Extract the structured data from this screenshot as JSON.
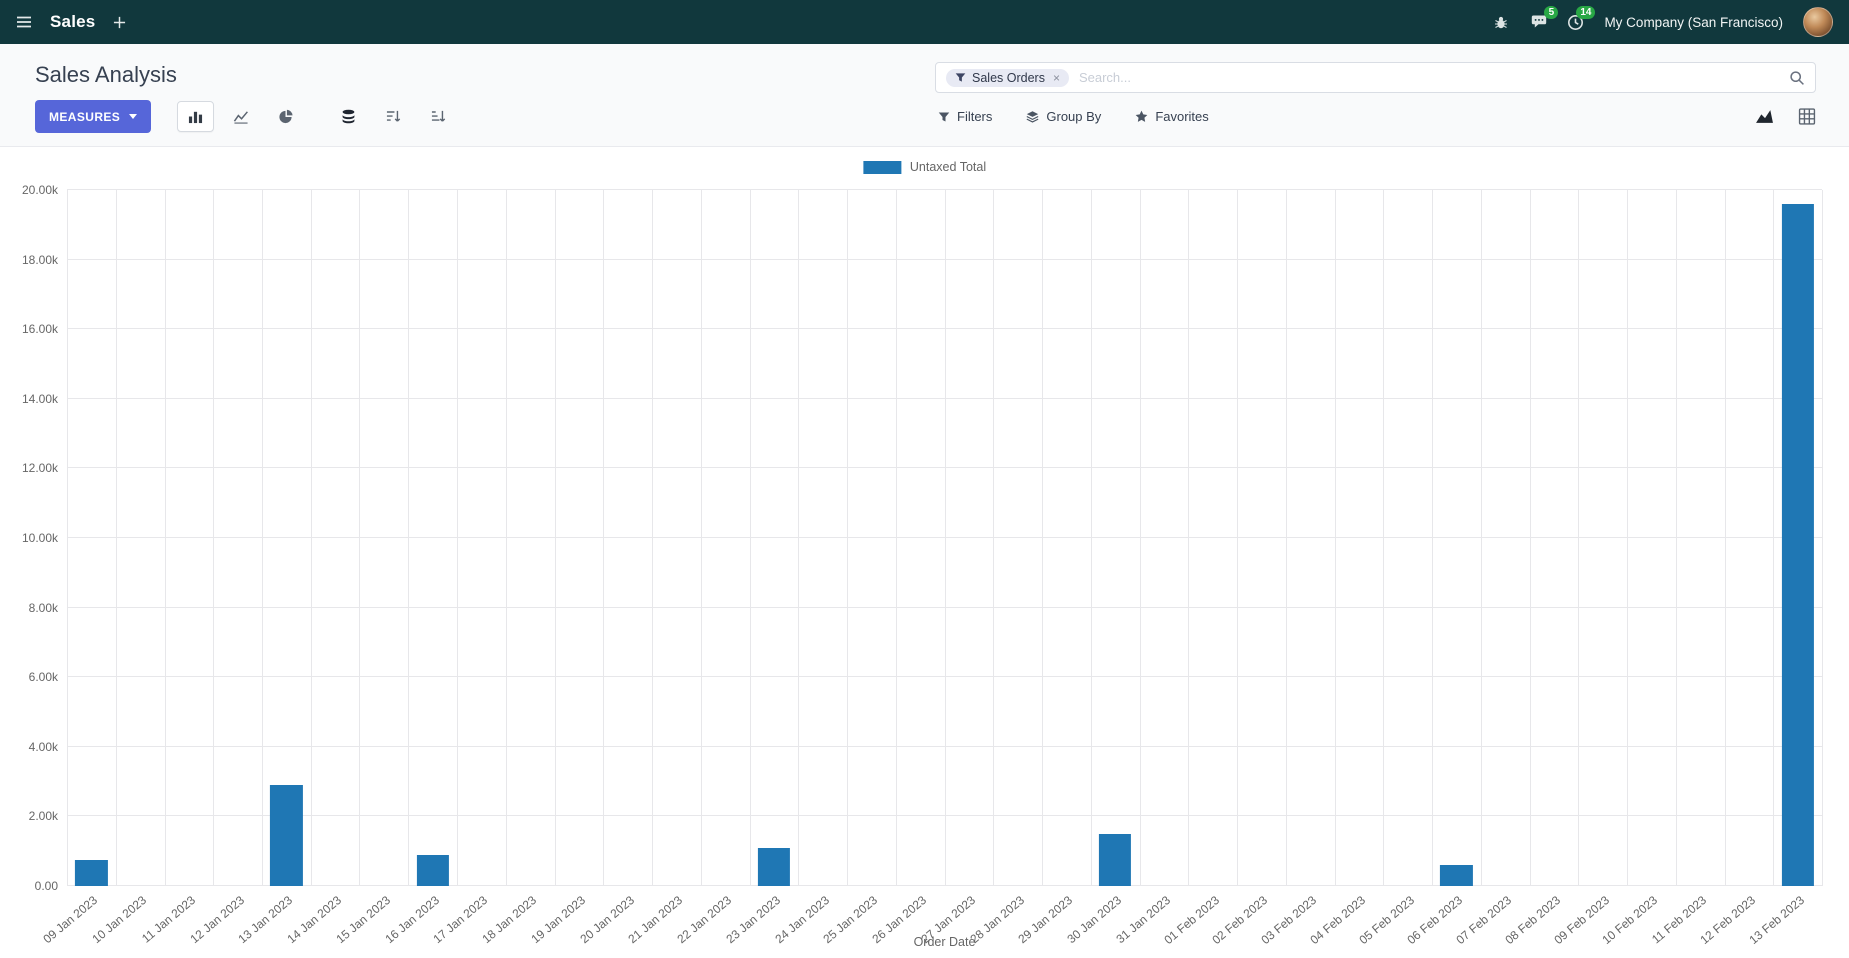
{
  "navbar": {
    "app_name": "Sales",
    "company": "My Company (San Francisco)",
    "messages_badge": "5",
    "activities_badge": "14"
  },
  "control_panel": {
    "title": "Sales Analysis",
    "search": {
      "facet": "Sales Orders",
      "facet_remove": "×",
      "placeholder": "Search..."
    },
    "measures_label": "MEASURES",
    "filters_label": "Filters",
    "group_by_label": "Group By",
    "favorites_label": "Favorites"
  },
  "colors": {
    "navbar_background": "#11383d",
    "primary_button": "#5666d9",
    "notification_badge": "#28a745",
    "bar": "#1f77b4"
  },
  "chart_data": {
    "type": "bar",
    "legend": "Untaxed Total",
    "xlabel": "Order Date",
    "ylabel": "",
    "ylim": [
      0,
      20000
    ],
    "grid": true,
    "legend_position": "top-center",
    "bar_color": "#1f77b4",
    "y_ticks": [
      "0.00",
      "2.00k",
      "4.00k",
      "6.00k",
      "8.00k",
      "10.00k",
      "12.00k",
      "14.00k",
      "16.00k",
      "18.00k",
      "20.00k"
    ],
    "categories": [
      "09 Jan 2023",
      "10 Jan 2023",
      "11 Jan 2023",
      "12 Jan 2023",
      "13 Jan 2023",
      "14 Jan 2023",
      "15 Jan 2023",
      "16 Jan 2023",
      "17 Jan 2023",
      "18 Jan 2023",
      "19 Jan 2023",
      "20 Jan 2023",
      "21 Jan 2023",
      "22 Jan 2023",
      "23 Jan 2023",
      "24 Jan 2023",
      "25 Jan 2023",
      "26 Jan 2023",
      "27 Jan 2023",
      "28 Jan 2023",
      "29 Jan 2023",
      "30 Jan 2023",
      "31 Jan 2023",
      "01 Feb 2023",
      "02 Feb 2023",
      "03 Feb 2023",
      "04 Feb 2023",
      "05 Feb 2023",
      "06 Feb 2023",
      "07 Feb 2023",
      "08 Feb 2023",
      "09 Feb 2023",
      "10 Feb 2023",
      "11 Feb 2023",
      "12 Feb 2023",
      "13 Feb 2023"
    ],
    "values": [
      750,
      0,
      0,
      0,
      2900,
      0,
      0,
      900,
      0,
      0,
      0,
      0,
      0,
      0,
      1100,
      0,
      0,
      0,
      0,
      0,
      0,
      1500,
      0,
      0,
      0,
      0,
      0,
      0,
      600,
      0,
      0,
      0,
      0,
      0,
      0,
      19600
    ]
  }
}
